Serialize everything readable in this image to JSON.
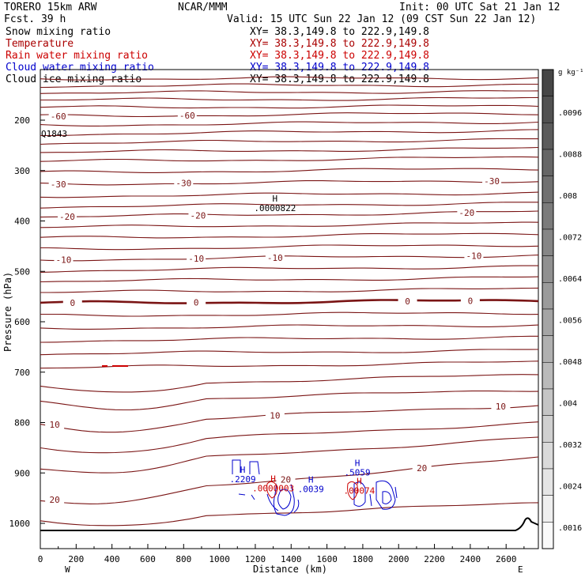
{
  "header": {
    "model": "TORERO  15km ARW",
    "fcst": "Fcst.   39 h",
    "center": "NCAR/MMM",
    "init": "Init: 00 UTC Sat 21 Jan 12",
    "valid": "Valid: 15 UTC Sun 22 Jan 12 (09 CST Sun 22 Jan 12)"
  },
  "fields": [
    {
      "name": "Snow mixing ratio",
      "xy": "XY=  38.3,149.8 to 222.9,149.8",
      "color": "#000000"
    },
    {
      "name": "Temperature",
      "xy": "XY=  38.3,149.8 to 222.9,149.8",
      "color": "#aa0000"
    },
    {
      "name": "Rain water mixing ratio",
      "xy": "XY=  38.3,149.8 to 222.9,149.8",
      "color": "#cc0000"
    },
    {
      "name": "Cloud water mixing ratio",
      "xy": "XY=  38.3,149.8 to 222.9,149.8",
      "color": "#0000cc"
    },
    {
      "name": "Cloud ice mixing ratio",
      "xy": "XY=  38.3,149.8 to 222.9,149.8",
      "color": "#000000"
    }
  ],
  "colors": {
    "temperature": "#7a1414",
    "rain": "#cc0000",
    "cloud_water": "#0000cc",
    "ground": "#000000"
  },
  "chart_data": {
    "type": "contour",
    "xlabel": "Distance (km)",
    "ylabel": "Pressure (hPa)",
    "x_ticks": [
      0,
      200,
      400,
      600,
      800,
      1000,
      1200,
      1400,
      1600,
      1800,
      2000,
      2200,
      2400,
      2600
    ],
    "y_ticks": [
      200,
      300,
      400,
      500,
      600,
      700,
      800,
      900,
      1000
    ],
    "xlim": [
      0,
      2780
    ],
    "ylim": [
      1050,
      100
    ],
    "x_end_labels": {
      "left": "W",
      "right": "E"
    },
    "temperature_contours": [
      {
        "label": "-60",
        "x_labels": [
          100,
          820
        ],
        "p_left": 192,
        "p_right": 186
      },
      {
        "label": "-30",
        "x_labels": [
          100,
          800,
          2520
        ],
        "p_left": 327,
        "p_right": 320
      },
      {
        "label": "-20",
        "x_labels": [
          150,
          880,
          2380
        ],
        "p_left": 392,
        "p_right": 382
      },
      {
        "label": "-10",
        "x_labels": [
          130,
          870,
          1310,
          2420
        ],
        "p_left": 477,
        "p_right": 468
      },
      {
        "label": "0",
        "x_labels": [
          180,
          870,
          2050,
          2400
        ],
        "p_left": 563,
        "p_right": 558
      },
      {
        "label": "10",
        "x_labels": [
          80,
          1310,
          2570
        ],
        "p_left": 805,
        "p_right": 765
      },
      {
        "label": "20",
        "x_labels": [
          80,
          1370,
          2130
        ],
        "p_left": 955,
        "p_right": 870
      }
    ],
    "extrema": [
      {
        "kind": "H",
        "value": ".0000822",
        "x": 1310,
        "p": 377
      },
      {
        "kind": "H",
        "value": ".2209",
        "x": 1130,
        "p": 915
      },
      {
        "kind": "H",
        "value": ".0000003",
        "x": 1300,
        "p": 933
      },
      {
        "kind": "H",
        "value": ".0039",
        "x": 1510,
        "p": 935
      },
      {
        "kind": "H",
        "value": ".5059",
        "x": 1770,
        "p": 902
      },
      {
        "kind": "H",
        "value": ".00074",
        "x": 1780,
        "p": 938
      }
    ],
    "station_label": "Q1843",
    "colorbar": {
      "unit": "g kg⁻¹",
      "ticks": [
        ".0096",
        ".0088",
        ".008",
        ".0072",
        ".0064",
        ".0056",
        ".0048",
        ".004",
        ".0032",
        ".0024",
        ".0016"
      ]
    }
  }
}
